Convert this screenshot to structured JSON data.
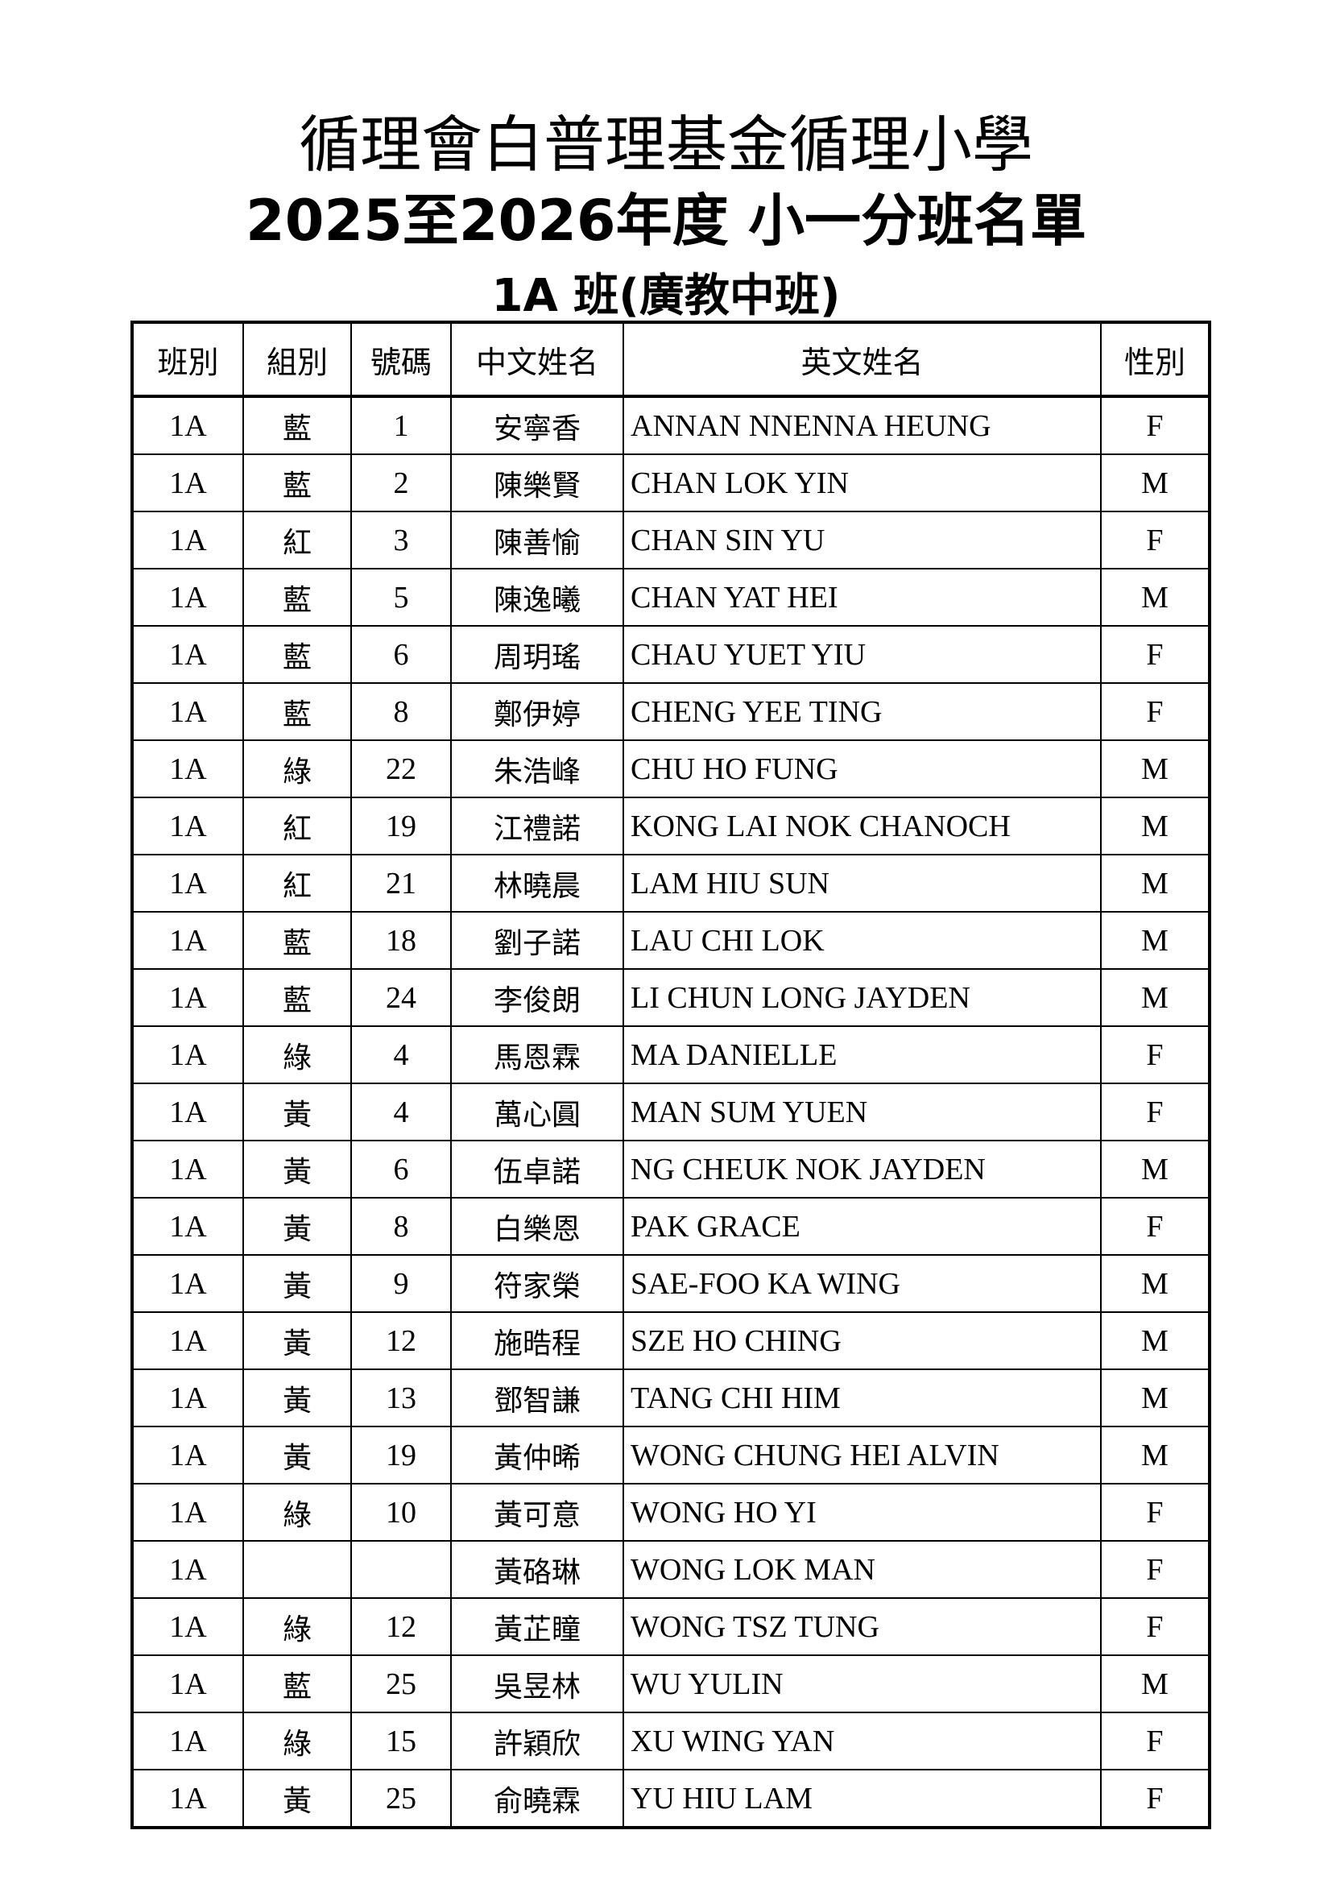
{
  "title": {
    "school": "循理會白普理基金循理小學",
    "list": "2025至2026年度 小一分班名單",
    "class": "1A 班(廣教中班)"
  },
  "columns": [
    "班別",
    "組別",
    "號碼",
    "中文姓名",
    "英文姓名",
    "性別"
  ],
  "rows": [
    [
      "1A",
      "藍",
      "1",
      "安寧香",
      "ANNAN NNENNA HEUNG",
      "F"
    ],
    [
      "1A",
      "藍",
      "2",
      "陳樂賢",
      "CHAN LOK YIN",
      "M"
    ],
    [
      "1A",
      "紅",
      "3",
      "陳善愉",
      "CHAN SIN YU",
      "F"
    ],
    [
      "1A",
      "藍",
      "5",
      "陳逸曦",
      "CHAN YAT HEI",
      "M"
    ],
    [
      "1A",
      "藍",
      "6",
      "周玥瑤",
      "CHAU YUET YIU",
      "F"
    ],
    [
      "1A",
      "藍",
      "8",
      "鄭伊婷",
      "CHENG YEE TING",
      "F"
    ],
    [
      "1A",
      "綠",
      "22",
      "朱浩峰",
      "CHU HO FUNG",
      "M"
    ],
    [
      "1A",
      "紅",
      "19",
      "江禮諾",
      "KONG LAI NOK CHANOCH",
      "M"
    ],
    [
      "1A",
      "紅",
      "21",
      "林曉晨",
      "LAM HIU SUN",
      "M"
    ],
    [
      "1A",
      "藍",
      "18",
      "劉子諾",
      "LAU CHI LOK",
      "M"
    ],
    [
      "1A",
      "藍",
      "24",
      "李俊朗",
      "LI CHUN LONG JAYDEN",
      "M"
    ],
    [
      "1A",
      "綠",
      "4",
      "馬恩霖",
      "MA DANIELLE",
      "F"
    ],
    [
      "1A",
      "黃",
      "4",
      "萬心圓",
      "MAN SUM YUEN",
      "F"
    ],
    [
      "1A",
      "黃",
      "6",
      "伍卓諾",
      "NG CHEUK NOK JAYDEN",
      "M"
    ],
    [
      "1A",
      "黃",
      "8",
      "白樂恩",
      "PAK GRACE",
      "F"
    ],
    [
      "1A",
      "黃",
      "9",
      "符家榮",
      "SAE-FOO KA WING",
      "M"
    ],
    [
      "1A",
      "黃",
      "12",
      "施晧程",
      "SZE HO CHING",
      "M"
    ],
    [
      "1A",
      "黃",
      "13",
      "鄧智謙",
      "TANG CHI HIM",
      "M"
    ],
    [
      "1A",
      "黃",
      "19",
      "黃仲晞",
      "WONG CHUNG HEI ALVIN",
      "M"
    ],
    [
      "1A",
      "綠",
      "10",
      "黃可意",
      "WONG HO YI",
      "F"
    ],
    [
      "1A",
      "",
      "",
      "黃硌琳",
      "WONG LOK MAN",
      "F"
    ],
    [
      "1A",
      "綠",
      "12",
      "黃芷瞳",
      "WONG TSZ TUNG",
      "F"
    ],
    [
      "1A",
      "藍",
      "25",
      "吳昱林",
      "WU YULIN",
      "M"
    ],
    [
      "1A",
      "綠",
      "15",
      "許穎欣",
      "XU WING YAN",
      "F"
    ],
    [
      "1A",
      "黃",
      "25",
      "俞曉霖",
      "YU HIU LAM",
      "F"
    ]
  ]
}
